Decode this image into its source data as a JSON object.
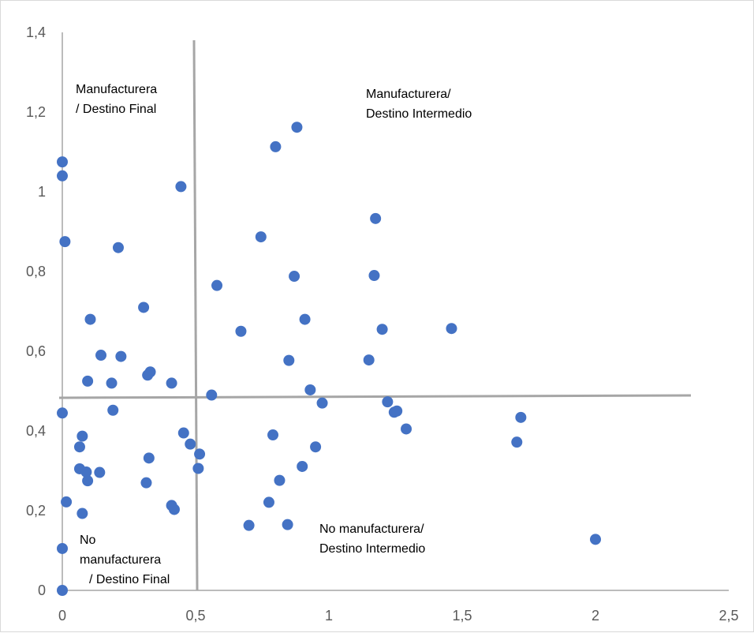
{
  "chart_data": {
    "type": "scatter",
    "title": "",
    "xlabel": "",
    "ylabel": "",
    "xlim": [
      0,
      2.5
    ],
    "ylim": [
      0,
      1.4
    ],
    "x_ticks": [
      "0",
      "0,5",
      "1",
      "1,5",
      "2",
      "2,5"
    ],
    "y_ticks": [
      "0",
      "0,2",
      "0,4",
      "0,6",
      "0,8",
      "1",
      "1,2",
      "1,4"
    ],
    "grid": false,
    "marker_color": "#4472C4",
    "axis_color": "#a6a6a6",
    "divider_color": "#a6a6a6",
    "annotations": {
      "top_left": [
        "Manufacturera",
        "/ Destino Final"
      ],
      "top_right": [
        "Manufacturera/",
        "Destino Intermedio"
      ],
      "bottom_left": [
        "No",
        "manufacturera",
        "/ Destino Final"
      ],
      "bottom_right": [
        "No manufacturera/",
        "Destino Intermedio"
      ]
    },
    "series": [
      {
        "points": [
          [
            0.0,
            1.075
          ],
          [
            0.0,
            1.04
          ],
          [
            0.01,
            0.875
          ],
          [
            0.0,
            0.445
          ],
          [
            0.0,
            0.105
          ],
          [
            0.0,
            0.0
          ],
          [
            0.015,
            0.222
          ],
          [
            0.065,
            0.36
          ],
          [
            0.075,
            0.387
          ],
          [
            0.065,
            0.305
          ],
          [
            0.09,
            0.297
          ],
          [
            0.095,
            0.275
          ],
          [
            0.075,
            0.193
          ],
          [
            0.095,
            0.525
          ],
          [
            0.105,
            0.68
          ],
          [
            0.14,
            0.296
          ],
          [
            0.145,
            0.59
          ],
          [
            0.185,
            0.52
          ],
          [
            0.19,
            0.452
          ],
          [
            0.21,
            0.86
          ],
          [
            0.22,
            0.587
          ],
          [
            0.305,
            0.71
          ],
          [
            0.315,
            0.27
          ],
          [
            0.32,
            0.54
          ],
          [
            0.33,
            0.548
          ],
          [
            0.325,
            0.332
          ],
          [
            0.41,
            0.52
          ],
          [
            0.41,
            0.213
          ],
          [
            0.42,
            0.203
          ],
          [
            0.445,
            1.013
          ],
          [
            0.455,
            0.395
          ],
          [
            0.48,
            0.367
          ],
          [
            0.515,
            0.342
          ],
          [
            0.51,
            0.306
          ],
          [
            0.56,
            0.49
          ],
          [
            0.58,
            0.765
          ],
          [
            0.67,
            0.65
          ],
          [
            0.7,
            0.163
          ],
          [
            0.745,
            0.887
          ],
          [
            0.775,
            0.221
          ],
          [
            0.79,
            0.39
          ],
          [
            0.8,
            1.113
          ],
          [
            0.815,
            0.276
          ],
          [
            0.845,
            0.165
          ],
          [
            0.85,
            0.577
          ],
          [
            0.87,
            0.788
          ],
          [
            0.88,
            1.162
          ],
          [
            0.9,
            0.311
          ],
          [
            0.91,
            0.68
          ],
          [
            0.93,
            0.503
          ],
          [
            0.95,
            0.36
          ],
          [
            0.975,
            0.47
          ],
          [
            1.15,
            0.578
          ],
          [
            1.17,
            0.79
          ],
          [
            1.175,
            0.933
          ],
          [
            1.2,
            0.655
          ],
          [
            1.22,
            0.473
          ],
          [
            1.245,
            0.447
          ],
          [
            1.255,
            0.45
          ],
          [
            1.29,
            0.405
          ],
          [
            1.46,
            0.657
          ],
          [
            1.705,
            0.372
          ],
          [
            1.72,
            0.434
          ],
          [
            2.0,
            0.128
          ]
        ]
      }
    ]
  }
}
